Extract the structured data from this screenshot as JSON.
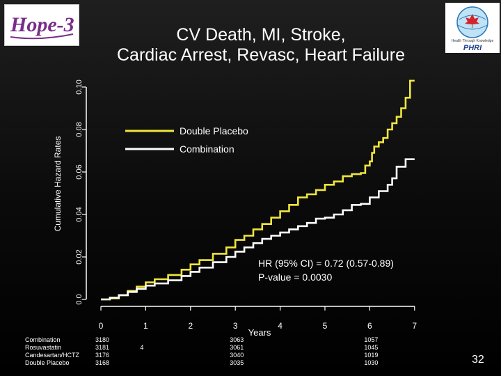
{
  "logos": {
    "left_text": "Hope-3",
    "right_text": "PHRI",
    "right_tagline": "Health Through Knowledge"
  },
  "title_lines": [
    "CV Death, MI, Stroke,",
    "Cardiac Arrest, Revasc, Heart Failure"
  ],
  "page_number": "32",
  "colors": {
    "placebo": "#f0e63c",
    "combination": "#ffffff",
    "axis": "#ffffff"
  },
  "chart_data": {
    "type": "line",
    "title": "CV Death, MI, Stroke, Cardiac Arrest, Revasc, Heart Failure",
    "xlabel": "Years",
    "ylabel": "Cumulative Hazard Rates",
    "xlim": [
      0,
      7
    ],
    "ylim": [
      0,
      0.1
    ],
    "x_ticks": [
      0,
      1,
      2,
      3,
      4,
      5,
      6,
      7
    ],
    "x_tick_labels": [
      "0",
      "1",
      "2",
      "3",
      "4",
      "5",
      "6",
      "7"
    ],
    "y_ticks": [
      0,
      0.02,
      0.04,
      0.06,
      0.08,
      0.1
    ],
    "y_tick_labels": [
      "0.0",
      "0.02",
      "0.04",
      "0.06",
      "0.08",
      "0.10"
    ],
    "legend_position": "top-left",
    "series": [
      {
        "name": "Double Placebo",
        "x": [
          0,
          0.2,
          0.4,
          0.6,
          0.8,
          1.0,
          1.2,
          1.5,
          1.8,
          2.0,
          2.2,
          2.5,
          2.8,
          3.0,
          3.2,
          3.4,
          3.6,
          3.8,
          4.0,
          4.2,
          4.4,
          4.6,
          4.8,
          5.0,
          5.2,
          5.4,
          5.6,
          5.8,
          5.9,
          6.0,
          6.05,
          6.1,
          6.2,
          6.3,
          6.4,
          6.5,
          6.6,
          6.7,
          6.8,
          6.9,
          7.0
        ],
        "y": [
          0,
          0.0005,
          0.002,
          0.004,
          0.006,
          0.008,
          0.0095,
          0.0115,
          0.014,
          0.0165,
          0.0185,
          0.0215,
          0.0245,
          0.028,
          0.03,
          0.033,
          0.0355,
          0.0385,
          0.0415,
          0.0445,
          0.048,
          0.0495,
          0.0515,
          0.054,
          0.0555,
          0.058,
          0.059,
          0.0595,
          0.063,
          0.065,
          0.069,
          0.072,
          0.074,
          0.076,
          0.08,
          0.083,
          0.086,
          0.09,
          0.095,
          0.103,
          0.103
        ]
      },
      {
        "name": "Combination",
        "x": [
          0,
          0.2,
          0.4,
          0.6,
          0.8,
          1.0,
          1.2,
          1.5,
          1.8,
          2.0,
          2.2,
          2.5,
          2.8,
          3.0,
          3.2,
          3.4,
          3.6,
          3.8,
          4.0,
          4.2,
          4.4,
          4.6,
          4.8,
          5.0,
          5.2,
          5.4,
          5.6,
          5.8,
          6.0,
          6.2,
          6.4,
          6.5,
          6.6,
          6.8,
          7.0
        ],
        "y": [
          0,
          0.0008,
          0.002,
          0.0035,
          0.005,
          0.0065,
          0.0075,
          0.009,
          0.011,
          0.013,
          0.015,
          0.0175,
          0.02,
          0.0225,
          0.0245,
          0.0265,
          0.0285,
          0.03,
          0.0315,
          0.033,
          0.0345,
          0.036,
          0.038,
          0.0385,
          0.04,
          0.042,
          0.0445,
          0.045,
          0.048,
          0.051,
          0.054,
          0.057,
          0.0625,
          0.066,
          0.066
        ]
      }
    ],
    "annotations": [
      "HR (95% CI) = 0.72 (0.57-0.89)",
      "P-value = 0.0030"
    ]
  },
  "risk_table": {
    "rows": [
      {
        "label": "Combination",
        "values": [
          "3180",
          "",
          "",
          "3063",
          "",
          "",
          "1057"
        ]
      },
      {
        "label": "Rosuvastatin",
        "values": [
          "3181",
          "4",
          "",
          "3061",
          "",
          "",
          "1045"
        ]
      },
      {
        "label": "Candesartan/HCTZ",
        "values": [
          "3176",
          "",
          "",
          "3040",
          "",
          "",
          "1019"
        ]
      },
      {
        "label": "Double Placebo",
        "values": [
          "3168",
          "",
          "",
          "3035",
          "",
          "",
          "1030"
        ]
      }
    ]
  }
}
